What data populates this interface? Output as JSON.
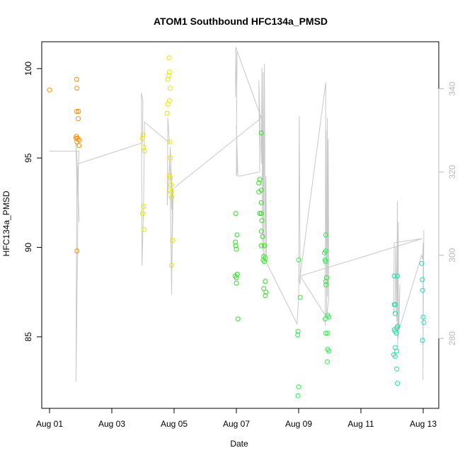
{
  "chart_data": {
    "type": "scatter",
    "title": "ATOM1 Southbound HFC134a_PMSD",
    "xlabel": "Date",
    "ylabel": "HFC134a_PMSD",
    "x_ticks": [
      "Aug 01",
      "Aug 03",
      "Aug 05",
      "Aug 07",
      "Aug 09",
      "Aug 11",
      "Aug 13"
    ],
    "x_tick_values": [
      0,
      2,
      4,
      6,
      8,
      10,
      12
    ],
    "xlim": [
      -0.25,
      12.5
    ],
    "y_ticks": [
      "85",
      "90",
      "95",
      "100"
    ],
    "ylim": [
      81,
      101.5
    ],
    "y2_ticks": [
      "280",
      "300",
      "320",
      "340"
    ],
    "y2lim": [
      263.2,
      351.3
    ],
    "grid": false,
    "series": [
      {
        "color": "#FF8C00",
        "points": [
          [
            0.0,
            98.8
          ],
          [
            0.87,
            99.4
          ],
          [
            0.88,
            98.9
          ],
          [
            0.87,
            97.6
          ],
          [
            0.93,
            97.6
          ],
          [
            0.92,
            97.2
          ],
          [
            0.86,
            96.2
          ],
          [
            0.85,
            96.1
          ],
          [
            0.9,
            96.1
          ],
          [
            0.95,
            96.0
          ],
          [
            0.88,
            95.9
          ],
          [
            0.95,
            95.7
          ],
          [
            0.88,
            89.8
          ]
        ]
      },
      {
        "color": "#E6E600",
        "points": [
          [
            3.0,
            96.3
          ],
          [
            2.98,
            96.1
          ],
          [
            3.02,
            95.6
          ],
          [
            3.05,
            95.4
          ],
          [
            3.02,
            92.3
          ],
          [
            2.99,
            91.9
          ],
          [
            3.03,
            91.0
          ],
          [
            3.84,
            100.6
          ],
          [
            3.85,
            99.8
          ],
          [
            3.83,
            99.6
          ],
          [
            3.8,
            99.4
          ],
          [
            3.87,
            98.9
          ],
          [
            3.85,
            98.2
          ],
          [
            3.8,
            98.0
          ],
          [
            3.78,
            97.5
          ],
          [
            3.86,
            95.9
          ],
          [
            3.88,
            95.0
          ],
          [
            3.85,
            94.0
          ],
          [
            3.88,
            93.9
          ],
          [
            3.9,
            93.5
          ],
          [
            3.86,
            93.2
          ],
          [
            3.9,
            93.1
          ],
          [
            3.92,
            92.8
          ],
          [
            3.95,
            90.4
          ],
          [
            3.92,
            89.0
          ]
        ]
      },
      {
        "color": "#33DD22",
        "points": [
          [
            5.98,
            91.9
          ],
          [
            6.02,
            90.7
          ],
          [
            5.97,
            90.3
          ],
          [
            5.98,
            90.1
          ],
          [
            6.0,
            89.9
          ],
          [
            5.96,
            88.4
          ],
          [
            6.0,
            88.3
          ],
          [
            6.03,
            88.5
          ],
          [
            6.0,
            88.0
          ],
          [
            6.05,
            86.0
          ],
          [
            6.8,
            96.4
          ],
          [
            6.75,
            93.8
          ],
          [
            6.72,
            93.6
          ],
          [
            6.8,
            93.2
          ],
          [
            6.72,
            93.1
          ],
          [
            6.8,
            92.5
          ],
          [
            6.75,
            91.9
          ],
          [
            6.8,
            91.9
          ],
          [
            6.82,
            91.5
          ],
          [
            6.8,
            90.9
          ],
          [
            6.84,
            90.6
          ],
          [
            6.8,
            90.1
          ],
          [
            6.88,
            89.5
          ],
          [
            6.86,
            89.3
          ],
          [
            6.9,
            90.1
          ],
          [
            6.93,
            89.4
          ],
          [
            6.9,
            89.2
          ],
          [
            6.93,
            88.1
          ],
          [
            6.88,
            87.7
          ],
          [
            6.95,
            87.5
          ],
          [
            6.93,
            87.3
          ]
        ]
      },
      {
        "color": "#22EE44",
        "points": [
          [
            8.0,
            89.3
          ],
          [
            8.05,
            87.2
          ],
          [
            7.98,
            85.3
          ],
          [
            7.97,
            85.1
          ],
          [
            8.0,
            82.2
          ],
          [
            7.98,
            81.7
          ],
          [
            8.87,
            90.7
          ],
          [
            8.83,
            89.7
          ],
          [
            8.87,
            89.8
          ],
          [
            8.85,
            89.3
          ],
          [
            8.87,
            89.2
          ],
          [
            8.9,
            88.3
          ],
          [
            8.87,
            88.1
          ],
          [
            8.88,
            87.9
          ],
          [
            8.93,
            86.2
          ],
          [
            8.97,
            86.1
          ],
          [
            8.85,
            86.0
          ],
          [
            8.93,
            85.2
          ],
          [
            8.87,
            85.2
          ],
          [
            8.93,
            84.3
          ],
          [
            8.97,
            84.2
          ],
          [
            8.92,
            83.6
          ]
        ]
      },
      {
        "color": "#22DDAA",
        "points": [
          [
            11.07,
            88.4
          ],
          [
            11.17,
            88.4
          ],
          [
            11.07,
            86.8
          ],
          [
            11.1,
            86.8
          ],
          [
            11.1,
            86.3
          ],
          [
            11.18,
            85.6
          ],
          [
            11.15,
            85.5
          ],
          [
            11.07,
            85.4
          ],
          [
            11.1,
            85.3
          ],
          [
            11.14,
            85.2
          ],
          [
            11.1,
            84.4
          ],
          [
            11.15,
            84.2
          ],
          [
            11.05,
            84.0
          ],
          [
            11.1,
            83.9
          ],
          [
            11.15,
            83.2
          ],
          [
            11.17,
            82.4
          ],
          [
            11.95,
            89.1
          ],
          [
            11.97,
            88.2
          ],
          [
            11.98,
            87.6
          ],
          [
            12.0,
            86.1
          ],
          [
            12.02,
            85.8
          ],
          [
            11.98,
            84.8
          ]
        ]
      }
    ],
    "secondary_line": {
      "color": "#c8c8c8",
      "points": [
        [
          0.0,
          325.0
        ],
        [
          0.95,
          325.0
        ],
        [
          0.88,
          315.8
        ],
        [
          0.85,
          327.0
        ],
        [
          0.92,
          311.0
        ],
        [
          0.87,
          325.0
        ],
        [
          0.95,
          308.0
        ],
        [
          0.9,
          318.0
        ],
        [
          0.88,
          320.0
        ],
        [
          0.86,
          291.5
        ],
        [
          0.85,
          269.6
        ],
        [
          0.93,
          322.0
        ],
        [
          2.98,
          327.0
        ],
        [
          3.0,
          337.0
        ],
        [
          2.95,
          339.0
        ],
        [
          2.97,
          297.5
        ],
        [
          3.02,
          312.0
        ],
        [
          3.05,
          332.0
        ],
        [
          3.85,
          327.0
        ],
        [
          3.8,
          333.0
        ],
        [
          3.78,
          312.0
        ],
        [
          3.88,
          326.0
        ],
        [
          3.9,
          322.0
        ],
        [
          3.92,
          318.0
        ],
        [
          3.95,
          313.0
        ],
        [
          3.88,
          319.0
        ],
        [
          3.85,
          323.0
        ],
        [
          3.9,
          318.0
        ],
        [
          3.92,
          311.0
        ],
        [
          3.95,
          315.0
        ],
        [
          3.88,
          314.0
        ],
        [
          3.92,
          290.5
        ],
        [
          3.95,
          316.0
        ],
        [
          3.92,
          293.0
        ],
        [
          3.97,
          316.0
        ],
        [
          6.8,
          333.0
        ],
        [
          5.98,
          350.0
        ],
        [
          5.97,
          338.0
        ],
        [
          6.02,
          349.0
        ],
        [
          6.0,
          319.0
        ],
        [
          6.03,
          321.0
        ],
        [
          6.0,
          331.0
        ],
        [
          6.05,
          319.0
        ],
        [
          6.1,
          319.0
        ],
        [
          6.75,
          320.0
        ],
        [
          6.72,
          342.0
        ],
        [
          6.8,
          322.0
        ],
        [
          6.82,
          345.0
        ],
        [
          6.84,
          301.0
        ],
        [
          6.86,
          344.0
        ],
        [
          6.88,
          300.0
        ],
        [
          6.9,
          346.0
        ],
        [
          6.93,
          300.0
        ],
        [
          6.95,
          319.0
        ],
        [
          6.97,
          300.0
        ],
        [
          6.85,
          300.0
        ],
        [
          7.95,
          283.5
        ],
        [
          8.0,
          290.0
        ],
        [
          8.02,
          333.5
        ],
        [
          8.05,
          293.0
        ],
        [
          8.0,
          295.0
        ],
        [
          8.05,
          295.0
        ],
        [
          8.87,
          341.5
        ],
        [
          8.85,
          283.0
        ],
        [
          8.88,
          330.0
        ],
        [
          8.9,
          285.0
        ],
        [
          8.92,
          333.0
        ],
        [
          8.93,
          290.0
        ],
        [
          8.95,
          328.0
        ],
        [
          8.97,
          290.0
        ],
        [
          8.9,
          285.0
        ],
        [
          8.05,
          295.0
        ],
        [
          11.97,
          304.0
        ],
        [
          11.07,
          303.0
        ],
        [
          11.05,
          286.0
        ],
        [
          11.1,
          287.0
        ],
        [
          11.12,
          302.0
        ],
        [
          11.15,
          284.0
        ],
        [
          11.17,
          313.0
        ],
        [
          11.18,
          278.0
        ],
        [
          11.2,
          308.0
        ],
        [
          11.2,
          280.0
        ],
        [
          11.25,
          293.0
        ],
        [
          11.22,
          282.0
        ],
        [
          11.95,
          300.0
        ],
        [
          11.98,
          299.0
        ],
        [
          12.0,
          303.0
        ],
        [
          11.99,
          270.0
        ],
        [
          12.02,
          306.0
        ]
      ]
    }
  }
}
